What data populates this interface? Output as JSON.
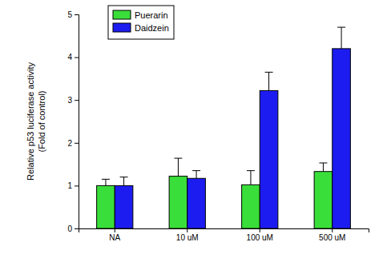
{
  "chart_data": {
    "type": "bar",
    "y_label": [
      "Relative p53 luciferase activity",
      "(Fold of control)"
    ],
    "categories": [
      "NA",
      "10 uM",
      "100 uM",
      "500 uM"
    ],
    "series": [
      {
        "name": "Puerarin",
        "color": "#3ade3a",
        "values": [
          1.0,
          1.22,
          1.02,
          1.33
        ],
        "errors": [
          0.15,
          0.42,
          0.33,
          0.2
        ]
      },
      {
        "name": "Daidzein",
        "color": "#1c1cf0",
        "values": [
          1.0,
          1.17,
          3.22,
          4.2
        ],
        "errors": [
          0.2,
          0.18,
          0.43,
          0.5
        ]
      }
    ],
    "ylim": [
      0,
      5
    ],
    "yticks": [
      0,
      1,
      2,
      3,
      4,
      5
    ],
    "legend": "upper left",
    "grid": false
  }
}
